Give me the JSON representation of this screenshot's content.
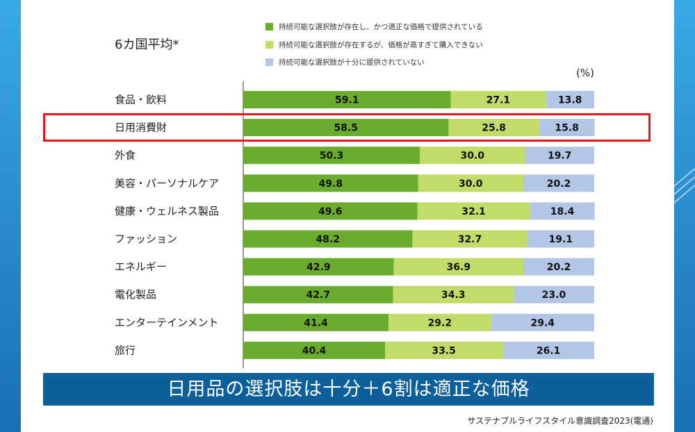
{
  "header": {
    "title": "6カ国平均*",
    "unit": "(%)"
  },
  "legend": [
    {
      "label": "持続可能な選択肢が存在し、かつ適正な価格で提供されている",
      "color": "#6aad2e"
    },
    {
      "label": "持続可能な選択肢が存在するが、価格が高すぎて購入できない",
      "color": "#c2dc6a"
    },
    {
      "label": "持続可能な選択肢が十分に提供されていない",
      "color": "#b3c6e6"
    }
  ],
  "chart_data": {
    "type": "bar",
    "orientation": "horizontal",
    "stacked": true,
    "title": "6カ国平均*",
    "xlabel": "",
    "ylabel": "(%)",
    "xlim": [
      0,
      100
    ],
    "categories": [
      "食品・飲料",
      "日用消費財",
      "外食",
      "美容・パーソナルケア",
      "健康・ウェルネス製品",
      "ファッション",
      "エネルギー",
      "電化製品",
      "エンターテインメント",
      "旅行"
    ],
    "series": [
      {
        "name": "持続可能な選択肢が存在し、かつ適正な価格で提供されている",
        "color": "#6aad2e",
        "values": [
          59.1,
          58.5,
          50.3,
          49.8,
          49.6,
          48.2,
          42.9,
          42.7,
          41.4,
          40.4
        ]
      },
      {
        "name": "持続可能な選択肢が存在するが、価格が高すぎて購入できない",
        "color": "#c2dc6a",
        "values": [
          27.1,
          25.8,
          30.0,
          30.0,
          32.1,
          32.7,
          36.9,
          34.3,
          29.2,
          33.5
        ]
      },
      {
        "name": "持続可能な選択肢が十分に提供されていない",
        "color": "#b3c6e6",
        "values": [
          13.8,
          15.8,
          19.7,
          20.2,
          18.4,
          19.1,
          20.2,
          23.0,
          29.4,
          26.1
        ]
      }
    ],
    "highlight_category": "日用消費財"
  },
  "banner": {
    "text": "日用品の選択肢は十分＋6割は適正な価格"
  },
  "source": {
    "text": "サステナブルライフスタイル意識調査2023(電通)"
  }
}
